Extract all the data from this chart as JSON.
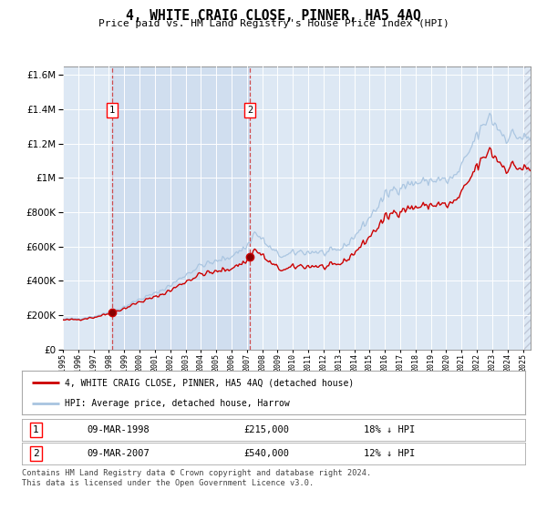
{
  "title": "4, WHITE CRAIG CLOSE, PINNER, HA5 4AQ",
  "subtitle": "Price paid vs. HM Land Registry's House Price Index (HPI)",
  "legend_line1": "4, WHITE CRAIG CLOSE, PINNER, HA5 4AQ (detached house)",
  "legend_line2": "HPI: Average price, detached house, Harrow",
  "table_row1": [
    "1",
    "09-MAR-1998",
    "£215,000",
    "18% ↓ HPI"
  ],
  "table_row2": [
    "2",
    "09-MAR-2007",
    "£540,000",
    "12% ↓ HPI"
  ],
  "footnote": "Contains HM Land Registry data © Crown copyright and database right 2024.\nThis data is licensed under the Open Government Licence v3.0.",
  "hpi_color": "#a8c4e0",
  "price_color": "#cc0000",
  "marker1_year": 1998.2,
  "marker2_year": 2007.2,
  "marker1_price": 215000,
  "marker2_price": 540000,
  "ylim_min": 0,
  "ylim_max": 1650000,
  "xlim_min": 1995.0,
  "xlim_max": 2025.5,
  "plot_bg": "#dde8f4",
  "hatch_color": "#c0c8d8"
}
